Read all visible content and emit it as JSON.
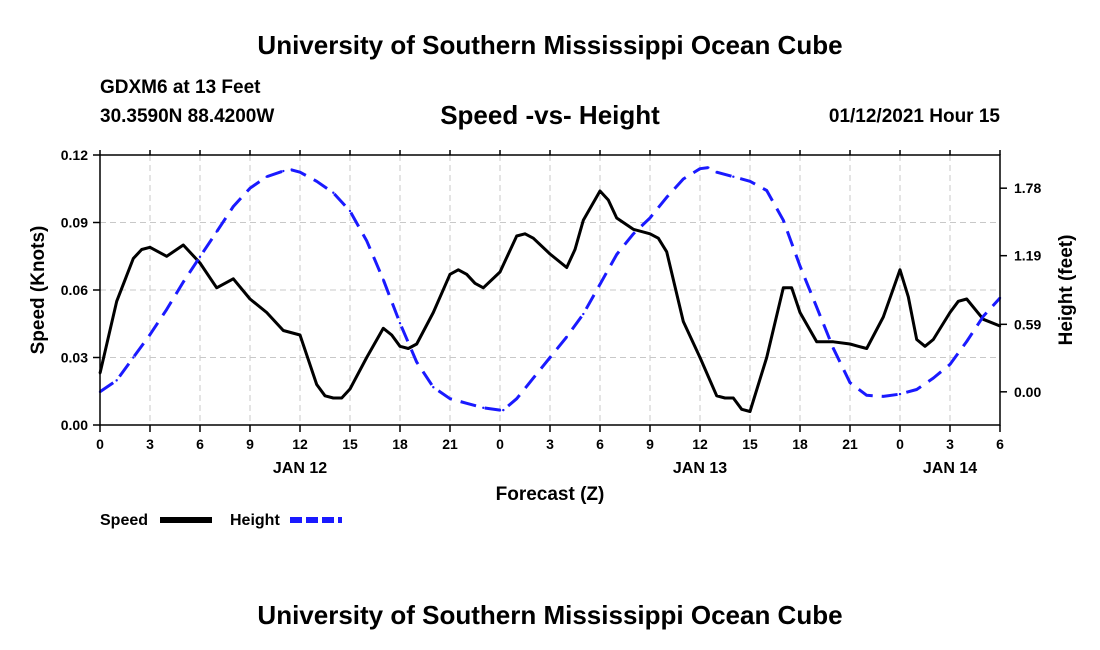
{
  "header": {
    "title": "University of Southern Mississippi Ocean Cube",
    "station": "GDXM6 at 13 Feet",
    "coords": "30.3590N 88.4200W",
    "datetime": "01/12/2021 Hour 15"
  },
  "footer": {
    "title": "University of Southern Mississippi Ocean Cube"
  },
  "colors": {
    "speed": "#000000",
    "height": "#1a1aff",
    "grid": "#c8c8c8"
  },
  "chart_data": {
    "type": "line",
    "title": "Speed -vs- Height",
    "xlabel": "Forecast (Z)",
    "ylabel": "Speed (Knots)",
    "y2label": "Height (feet)",
    "xlim": [
      0,
      54
    ],
    "ylim": [
      0,
      0.12
    ],
    "y2lim": [
      -0.29,
      2.07
    ],
    "x_ticks": [
      0,
      3,
      6,
      9,
      12,
      15,
      18,
      21,
      24,
      27,
      30,
      33,
      36,
      39,
      42,
      45,
      48,
      51,
      54
    ],
    "x_tick_labels": [
      "0",
      "3",
      "6",
      "9",
      "12",
      "15",
      "18",
      "21",
      "0",
      "3",
      "6",
      "9",
      "12",
      "15",
      "18",
      "21",
      "0",
      "3",
      "6"
    ],
    "y_ticks": [
      0,
      0.03,
      0.06,
      0.09,
      0.12
    ],
    "y_tick_labels": [
      "0.00",
      "0.03",
      "0.06",
      "0.09",
      "0.12"
    ],
    "y2_ticks": [
      0,
      0.59,
      1.19,
      1.78
    ],
    "y2_tick_labels": [
      "0.00",
      "0.59",
      "1.19",
      "1.78"
    ],
    "day_labels": [
      {
        "x": 12,
        "label": "JAN 12"
      },
      {
        "x": 36,
        "label": "JAN 13"
      },
      {
        "x": 51,
        "label": "JAN 14"
      }
    ],
    "legend": [
      {
        "name": "Speed",
        "style": "solid"
      },
      {
        "name": "Height",
        "style": "dashed"
      }
    ],
    "series": [
      {
        "name": "Speed",
        "axis": "left",
        "x": [
          0,
          1,
          2,
          2.5,
          3,
          4,
          5,
          6,
          7,
          8,
          9,
          10,
          11,
          12,
          13,
          13.5,
          14,
          14.5,
          15,
          16,
          17,
          17.5,
          18,
          18.5,
          19,
          20,
          21,
          21.5,
          22,
          22.5,
          23,
          24,
          25,
          25.5,
          26,
          27,
          28,
          28.5,
          29,
          30,
          30.5,
          31,
          32,
          33,
          33.5,
          34,
          35,
          36,
          37,
          37.5,
          38,
          38.5,
          39,
          40,
          41,
          41.5,
          42,
          43,
          44,
          45,
          45.5,
          46,
          47,
          48,
          48.5,
          49,
          49.5,
          50,
          51,
          51.5,
          52,
          53,
          54
        ],
        "values": [
          0.023,
          0.055,
          0.074,
          0.078,
          0.079,
          0.075,
          0.08,
          0.072,
          0.061,
          0.065,
          0.056,
          0.05,
          0.042,
          0.04,
          0.018,
          0.013,
          0.012,
          0.012,
          0.016,
          0.03,
          0.043,
          0.04,
          0.035,
          0.034,
          0.036,
          0.05,
          0.067,
          0.069,
          0.067,
          0.063,
          0.061,
          0.068,
          0.084,
          0.085,
          0.083,
          0.076,
          0.07,
          0.078,
          0.091,
          0.104,
          0.1,
          0.092,
          0.087,
          0.085,
          0.083,
          0.077,
          0.046,
          0.03,
          0.013,
          0.012,
          0.012,
          0.007,
          0.006,
          0.03,
          0.061,
          0.061,
          0.05,
          0.037,
          0.037,
          0.036,
          0.035,
          0.034,
          0.048,
          0.069,
          0.057,
          0.038,
          0.035,
          0.038,
          0.05,
          0.055,
          0.056,
          0.047,
          0.044
        ]
      },
      {
        "name": "Height",
        "axis": "right",
        "x": [
          0,
          1,
          2,
          3,
          4,
          5,
          6,
          7,
          8,
          9,
          10,
          11,
          11.5,
          12,
          13,
          14,
          15,
          16,
          17,
          18,
          19,
          20,
          21,
          22,
          23,
          24,
          24.2,
          25,
          26,
          27,
          28,
          29,
          30,
          31,
          32,
          33,
          34,
          35,
          36,
          36.5,
          37,
          38,
          39,
          40,
          41,
          42,
          43,
          44,
          45,
          46,
          47,
          48,
          49,
          50,
          51,
          52,
          53,
          54
        ],
        "values": [
          0.0,
          0.1,
          0.3,
          0.5,
          0.72,
          0.96,
          1.18,
          1.4,
          1.62,
          1.78,
          1.88,
          1.93,
          1.94,
          1.92,
          1.84,
          1.74,
          1.58,
          1.32,
          0.98,
          0.6,
          0.26,
          0.04,
          -0.06,
          -0.1,
          -0.14,
          -0.16,
          -0.16,
          -0.06,
          0.12,
          0.3,
          0.48,
          0.68,
          0.94,
          1.2,
          1.38,
          1.52,
          1.7,
          1.86,
          1.95,
          1.96,
          1.92,
          1.88,
          1.84,
          1.76,
          1.5,
          1.1,
          0.74,
          0.38,
          0.08,
          -0.03,
          -0.04,
          -0.02,
          0.02,
          0.12,
          0.24,
          0.44,
          0.66,
          0.82
        ]
      }
    ]
  }
}
